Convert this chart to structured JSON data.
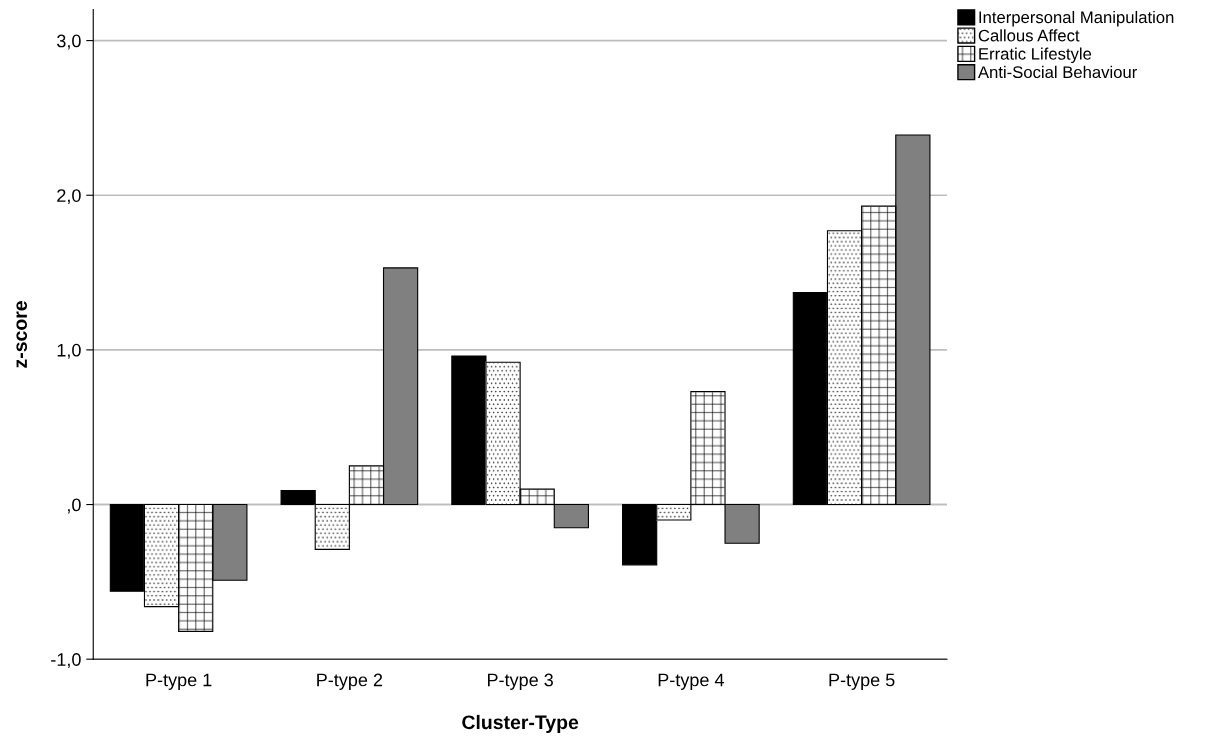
{
  "chart_data": {
    "type": "bar",
    "xlabel": "Cluster-Type",
    "ylabel": "z-score",
    "categories": [
      "P-type 1",
      "P-type 2",
      "P-type 3",
      "P-type 4",
      "P-type 5"
    ],
    "series": [
      {
        "name": "Interpersonal Manipulation",
        "color": "#000000",
        "values": [
          -0.56,
          0.09,
          0.96,
          -0.39,
          1.37
        ]
      },
      {
        "name": "Callous Affect",
        "color": "#ffffff",
        "values": [
          -0.66,
          -0.29,
          0.92,
          -0.1,
          1.77
        ]
      },
      {
        "name": "Erratic Lifestyle",
        "color": "#ffffff",
        "values": [
          -0.82,
          0.25,
          0.1,
          0.73,
          1.93
        ]
      },
      {
        "name": "Anti-Social Behaviour",
        "color": "#808080",
        "values": [
          -0.49,
          1.53,
          -0.15,
          -0.25,
          2.39
        ]
      }
    ],
    "ylim": [
      -1.0,
      3.2
    ],
    "yticks": [
      {
        "value": -1,
        "label": "-1,0"
      },
      {
        "value": 0,
        "label": ",0"
      },
      {
        "value": 1,
        "label": "1,0"
      },
      {
        "value": 2,
        "label": "2,0"
      },
      {
        "value": 3,
        "label": "3,0"
      }
    ],
    "grid": "y",
    "legend": "top right"
  }
}
